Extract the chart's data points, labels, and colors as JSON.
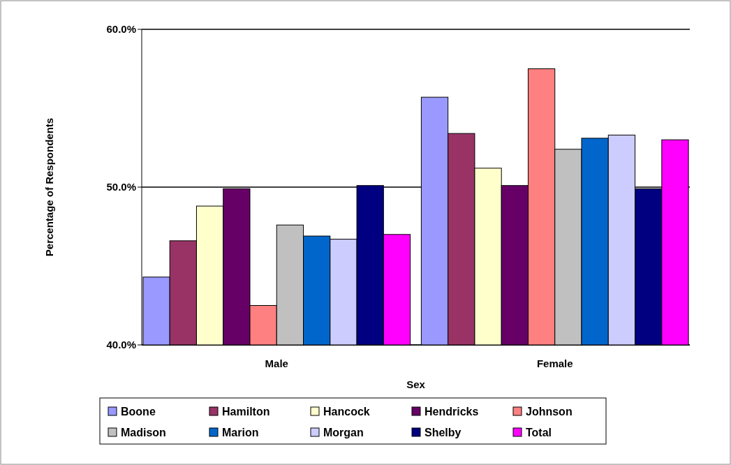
{
  "chart_data": {
    "type": "bar",
    "xlabel": "Sex",
    "ylabel": "Percentage of Respondents",
    "categories": [
      "Male",
      "Female"
    ],
    "series": [
      {
        "name": "Boone",
        "color": "#9999ff",
        "values": [
          44.3,
          55.7
        ]
      },
      {
        "name": "Hamilton",
        "color": "#993366",
        "values": [
          46.6,
          53.4
        ]
      },
      {
        "name": "Hancock",
        "color": "#ffffcc",
        "values": [
          48.8,
          51.2
        ]
      },
      {
        "name": "Hendricks",
        "color": "#660066",
        "values": [
          49.9,
          50.1
        ]
      },
      {
        "name": "Johnson",
        "color": "#ff8080",
        "values": [
          42.5,
          57.5
        ]
      },
      {
        "name": "Madison",
        "color": "#c0c0c0",
        "values": [
          47.6,
          52.4
        ]
      },
      {
        "name": "Marion",
        "color": "#0066cc",
        "values": [
          46.9,
          53.1
        ]
      },
      {
        "name": "Morgan",
        "color": "#ccccff",
        "values": [
          46.7,
          53.3
        ]
      },
      {
        "name": "Shelby",
        "color": "#000080",
        "values": [
          50.1,
          49.9
        ]
      },
      {
        "name": "Total",
        "color": "#ff00ff",
        "values": [
          47.0,
          53.0
        ]
      }
    ],
    "ylim": [
      40,
      60
    ],
    "yticks": [
      {
        "value": 40,
        "label": "40.0%"
      },
      {
        "value": 50,
        "label": "50.0%"
      },
      {
        "value": 60,
        "label": "60.0%"
      }
    ],
    "grid": "y",
    "legend": "bottom"
  }
}
